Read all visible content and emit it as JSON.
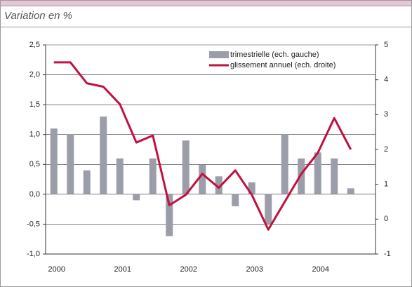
{
  "chart_data": {
    "type": "bar_line",
    "subtitle": "Variation en %",
    "categories": [
      "2000",
      null,
      null,
      null,
      "2001",
      null,
      null,
      null,
      "2002",
      null,
      null,
      null,
      "2003",
      null,
      null,
      null,
      "2004",
      null,
      null,
      null
    ],
    "series": [
      {
        "name": "trimestrielle (ech. gauche)",
        "color": "#9b9da8",
        "type": "bar",
        "values": [
          1.1,
          1.0,
          0.4,
          1.3,
          0.6,
          -0.1,
          0.6,
          -0.7,
          0.9,
          0.5,
          0.3,
          -0.2,
          0.2,
          -0.5,
          1.0,
          0.6,
          0.7,
          0.6,
          0.1,
          null
        ]
      },
      {
        "name": "glissement annuel (ech. droite)",
        "color": "#c2103f",
        "type": "line",
        "axis": "y2",
        "values": [
          4.5,
          4.5,
          3.9,
          3.8,
          3.3,
          2.2,
          2.4,
          0.4,
          0.7,
          1.3,
          0.9,
          1.4,
          0.7,
          -0.3,
          0.5,
          1.3,
          1.9,
          2.9,
          2.0,
          null
        ]
      }
    ],
    "ylim": [
      -1.0,
      2.5
    ],
    "yticks": [
      {
        "value": 2.5,
        "label": "2,5"
      },
      {
        "value": 2.0,
        "label": "2,0"
      },
      {
        "value": 1.5,
        "label": "1,5"
      },
      {
        "value": 1.0,
        "label": "1,0"
      },
      {
        "value": 0.5,
        "label": "0,5"
      },
      {
        "value": 0.0,
        "label": "0,0"
      },
      {
        "value": -0.5,
        "label": "-0,5"
      },
      {
        "value": -1.0,
        "label": "-1,0"
      }
    ],
    "y2lim": [
      -1,
      5
    ],
    "y2ticks": [
      5,
      4,
      3,
      2,
      1,
      0,
      -1
    ],
    "grid": true,
    "legend": "top-right"
  }
}
